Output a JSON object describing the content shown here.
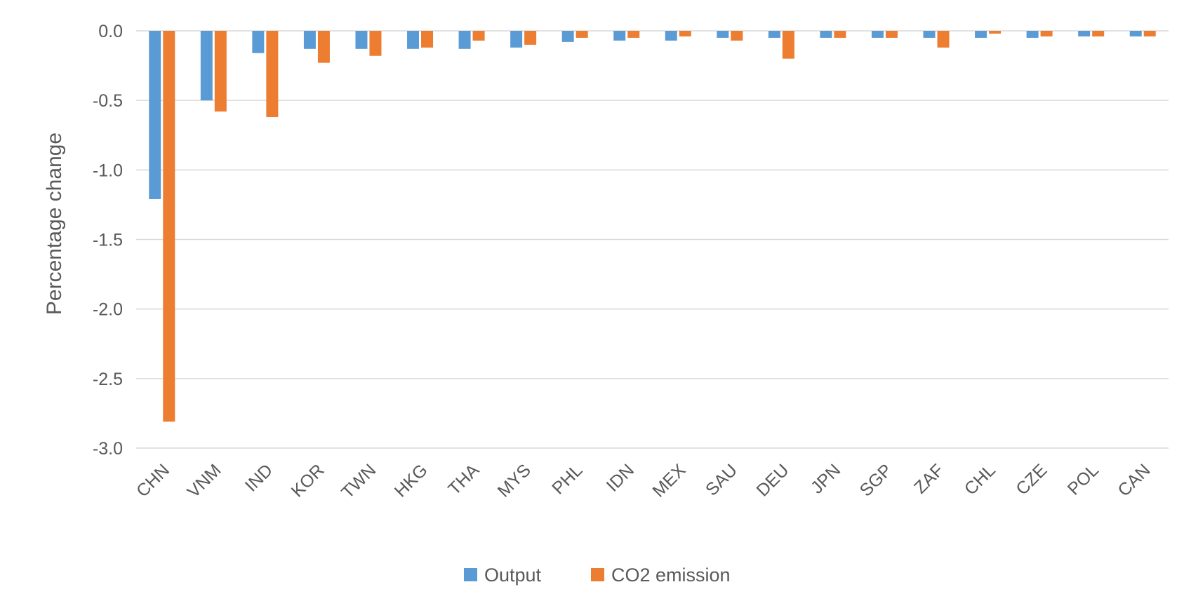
{
  "chart_data": {
    "type": "bar",
    "title": "",
    "xlabel": "",
    "ylabel": "Percentage change",
    "ylim": [
      -3.0,
      0.0
    ],
    "yticks": [
      "0.0",
      "-0.5",
      "-1.0",
      "-1.5",
      "-2.0",
      "-2.5",
      "-3.0"
    ],
    "ytick_values": [
      0.0,
      -0.5,
      -1.0,
      -1.5,
      -2.0,
      -2.5,
      -3.0
    ],
    "grid": true,
    "legend_position": "bottom-center",
    "categories": [
      "CHN",
      "VNM",
      "IND",
      "KOR",
      "TWN",
      "HKG",
      "THA",
      "MYS",
      "PHL",
      "IDN",
      "MEX",
      "SAU",
      "DEU",
      "JPN",
      "SGP",
      "ZAF",
      "CHL",
      "CZE",
      "POL",
      "CAN"
    ],
    "series": [
      {
        "name": "Output",
        "color": "#5B9BD5",
        "values": [
          -1.21,
          -0.5,
          -0.16,
          -0.13,
          -0.13,
          -0.13,
          -0.13,
          -0.12,
          -0.08,
          -0.07,
          -0.07,
          -0.05,
          -0.05,
          -0.05,
          -0.05,
          -0.05,
          -0.05,
          -0.05,
          -0.04,
          -0.04
        ]
      },
      {
        "name": "CO2 emission",
        "color": "#ED7D31",
        "values": [
          -2.81,
          -0.58,
          -0.62,
          -0.23,
          -0.18,
          -0.12,
          -0.07,
          -0.1,
          -0.05,
          -0.05,
          -0.04,
          -0.07,
          -0.2,
          -0.05,
          -0.05,
          -0.12,
          -0.02,
          -0.04,
          -0.04,
          -0.04
        ]
      }
    ]
  }
}
